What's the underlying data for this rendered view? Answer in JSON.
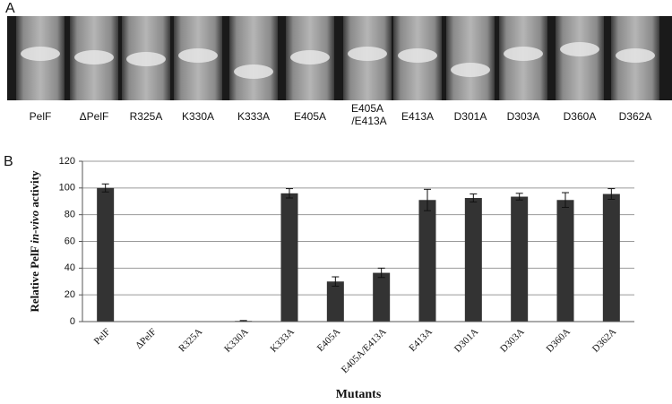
{
  "panel_a": {
    "label": "A",
    "tube_labels": [
      "PelF",
      "ΔPelF",
      "R325A",
      "K330A",
      "K333A",
      "E405A",
      [
        "E405A",
        "/E413A"
      ],
      "E413A",
      "D301A",
      "D303A",
      "D360A",
      "D362A"
    ]
  },
  "panel_b": {
    "label": "B"
  },
  "chart_data": {
    "type": "bar",
    "ylabel_parts": [
      "Relative PelF ",
      "in-vivo",
      " activity"
    ],
    "xlabel": "Mutants",
    "categories": [
      "PelF",
      "ΔPelF",
      "R325A",
      "K330A",
      "K333A",
      "E405A",
      "E405A/E413A",
      "E413A",
      "D301A",
      "D303A",
      "D360A",
      "D362A"
    ],
    "values": [
      100,
      0,
      0,
      0.5,
      96,
      30,
      36.5,
      91,
      92.5,
      93.5,
      91,
      95.5
    ],
    "errors": [
      3,
      0,
      0,
      0.3,
      3.5,
      3.5,
      3.5,
      8,
      3,
      2.5,
      5.5,
      4
    ],
    "color": "#333333",
    "ylim": [
      0,
      120
    ],
    "yticks": [
      0,
      20,
      40,
      60,
      80,
      100,
      120
    ],
    "grid": true
  }
}
